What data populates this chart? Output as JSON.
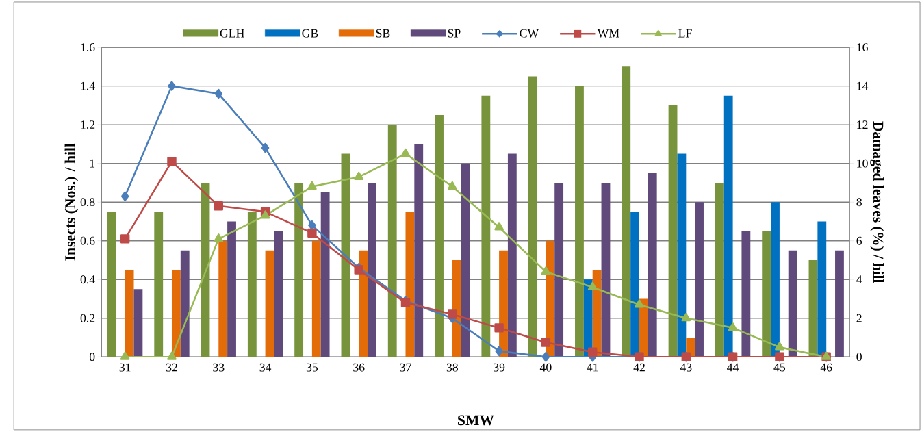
{
  "chart_data": {
    "type": "bar",
    "xlabel": "SMW",
    "ylabel": "Insects (Nos.) / hill",
    "y2label": "Damaged leaves (%) / hill",
    "categories": [
      "31",
      "32",
      "33",
      "34",
      "35",
      "36",
      "37",
      "38",
      "39",
      "40",
      "41",
      "42",
      "43",
      "44",
      "45",
      "46"
    ],
    "series": [
      {
        "name": "GLH",
        "color": "#77933c",
        "values": [
          0.75,
          0.75,
          0.9,
          0.75,
          0.9,
          1.05,
          1.2,
          1.25,
          1.35,
          1.45,
          1.4,
          1.5,
          1.3,
          0.9,
          0.65,
          0.5
        ]
      },
      {
        "name": "GB",
        "color": "#0070c0",
        "values": [
          0,
          0,
          0,
          0,
          0,
          0,
          0,
          0,
          0,
          0,
          0.4,
          0.75,
          1.05,
          1.35,
          0.8,
          0.7
        ]
      },
      {
        "name": "SB",
        "color": "#e36c09",
        "values": [
          0.45,
          0.45,
          0.6,
          0.55,
          0.6,
          0.55,
          0.75,
          0.5,
          0.55,
          0.6,
          0.45,
          0.3,
          0.1,
          0,
          0,
          0
        ]
      },
      {
        "name": "SP",
        "color": "#604a7b",
        "values": [
          0.35,
          0.55,
          0.7,
          0.65,
          0.85,
          0.9,
          1.1,
          1.0,
          1.05,
          0.9,
          0.9,
          0.95,
          0.8,
          0.65,
          0.55,
          0.55
        ]
      },
      {
        "name": "CW",
        "color": "#4a7ebb",
        "type": "line",
        "axis": "y2",
        "marker": "diamond",
        "values": [
          8.3,
          14,
          13.6,
          10.8,
          6.8,
          4.6,
          2.9,
          2.0,
          0.3,
          0,
          0,
          0,
          0,
          0,
          0,
          0
        ]
      },
      {
        "name": "WM",
        "color": "#be4b48",
        "type": "line",
        "axis": "y2",
        "marker": "square",
        "values": [
          6.1,
          10.1,
          7.8,
          7.5,
          6.4,
          4.5,
          2.8,
          2.2,
          1.5,
          0.75,
          0.25,
          0,
          0,
          0,
          0,
          0
        ]
      },
      {
        "name": "LF",
        "color": "#98b954",
        "type": "line",
        "axis": "y2",
        "marker": "triangle",
        "values": [
          0,
          0,
          6.1,
          7.3,
          8.8,
          9.3,
          10.5,
          8.8,
          6.7,
          4.4,
          3.6,
          2.7,
          2.0,
          1.5,
          0.5,
          0
        ]
      }
    ],
    "ylim": [
      0,
      1.6
    ],
    "yticks": [
      0,
      0.2,
      0.4,
      0.6,
      0.8,
      1,
      1.2,
      1.4,
      1.6
    ],
    "y2lim": [
      0,
      16
    ],
    "y2ticks": [
      0,
      2,
      4,
      6,
      8,
      10,
      12,
      14,
      16
    ],
    "grid": "y",
    "legend": "top"
  }
}
